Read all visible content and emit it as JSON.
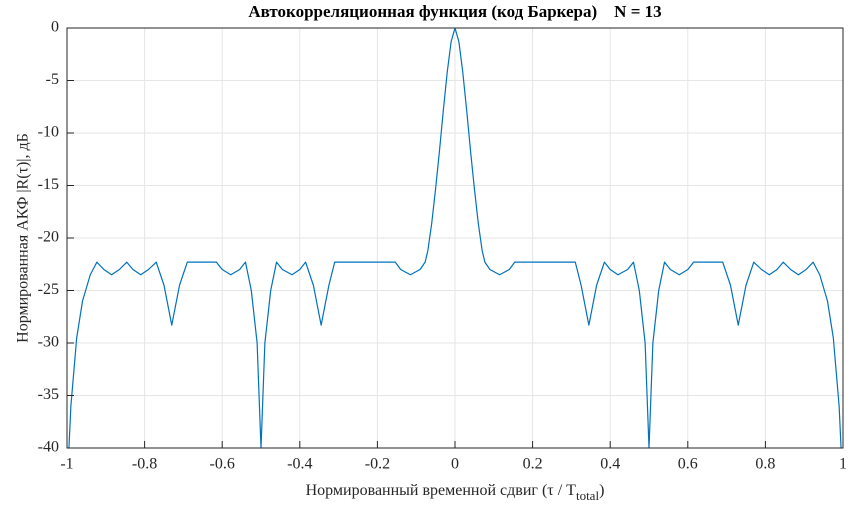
{
  "chart_data": {
    "type": "line",
    "title": "Автокорреляционная функция (код Баркера)    N = 13",
    "xlabel": [
      "Нормированный временной сдвиг (τ / T",
      "total",
      ")"
    ],
    "ylabel": "Нормированная АКФ |R(τ)|, дБ",
    "xlim": [
      -1,
      1
    ],
    "ylim": [
      -40,
      0
    ],
    "xticks": [
      -1,
      -0.8,
      -0.6,
      -0.4,
      -0.2,
      0,
      0.2,
      0.4,
      0.6,
      0.8,
      1
    ],
    "yticks": [
      0,
      -5,
      -10,
      -15,
      -20,
      -25,
      -30,
      -35,
      -40
    ],
    "grid": true,
    "color": "#0072bd",
    "x": [
      -0.995,
      -0.99,
      -0.975,
      -0.96,
      -0.94,
      -0.923,
      -0.905,
      -0.885,
      -0.865,
      -0.846,
      -0.83,
      -0.81,
      -0.79,
      -0.77,
      -0.75,
      -0.73,
      -0.71,
      -0.69,
      -0.615,
      -0.6,
      -0.578,
      -0.555,
      -0.54,
      -0.525,
      -0.51,
      -0.5,
      -0.49,
      -0.475,
      -0.46,
      -0.445,
      -0.42,
      -0.4,
      -0.385,
      -0.365,
      -0.345,
      -0.325,
      -0.31,
      -0.154,
      -0.14,
      -0.115,
      -0.09,
      -0.077,
      -0.07,
      -0.06,
      -0.05,
      -0.04,
      -0.03,
      -0.02,
      -0.01,
      0,
      0.01,
      0.02,
      0.03,
      0.04,
      0.05,
      0.06,
      0.07,
      0.077,
      0.09,
      0.115,
      0.14,
      0.154,
      0.31,
      0.325,
      0.345,
      0.365,
      0.385,
      0.4,
      0.42,
      0.445,
      0.46,
      0.475,
      0.49,
      0.5,
      0.51,
      0.525,
      0.54,
      0.555,
      0.578,
      0.6,
      0.615,
      0.69,
      0.71,
      0.73,
      0.75,
      0.77,
      0.79,
      0.81,
      0.83,
      0.846,
      0.865,
      0.885,
      0.905,
      0.923,
      0.94,
      0.96,
      0.975,
      0.99,
      0.995
    ],
    "values": [
      -40,
      -36,
      -29.5,
      -26,
      -23.5,
      -22.3,
      -23.0,
      -23.5,
      -23.0,
      -22.3,
      -23.0,
      -23.5,
      -23.0,
      -22.3,
      -24.5,
      -28.3,
      -24.5,
      -22.3,
      -22.3,
      -23.0,
      -23.5,
      -23.0,
      -22.3,
      -25,
      -30,
      -40,
      -30,
      -25,
      -22.3,
      -23.0,
      -23.5,
      -23.0,
      -22.3,
      -24.5,
      -28.3,
      -24.5,
      -22.3,
      -22.3,
      -23.0,
      -23.5,
      -23.0,
      -22.3,
      -21.2,
      -18.6,
      -15.3,
      -11.7,
      -7.8,
      -4.2,
      -1.3,
      0,
      -1.3,
      -4.2,
      -7.8,
      -11.7,
      -15.3,
      -18.6,
      -21.2,
      -22.3,
      -23.0,
      -23.5,
      -23.0,
      -22.3,
      -22.3,
      -24.5,
      -28.3,
      -24.5,
      -22.3,
      -23.0,
      -23.5,
      -23.0,
      -22.3,
      -25,
      -30,
      -40,
      -30,
      -25,
      -22.3,
      -23.0,
      -23.5,
      -23.0,
      -22.3,
      -22.3,
      -24.5,
      -28.3,
      -24.5,
      -22.3,
      -23.0,
      -23.5,
      -23.0,
      -22.3,
      -23.0,
      -23.5,
      -23.0,
      -22.3,
      -23.5,
      -26,
      -29.5,
      -36,
      -40
    ]
  }
}
